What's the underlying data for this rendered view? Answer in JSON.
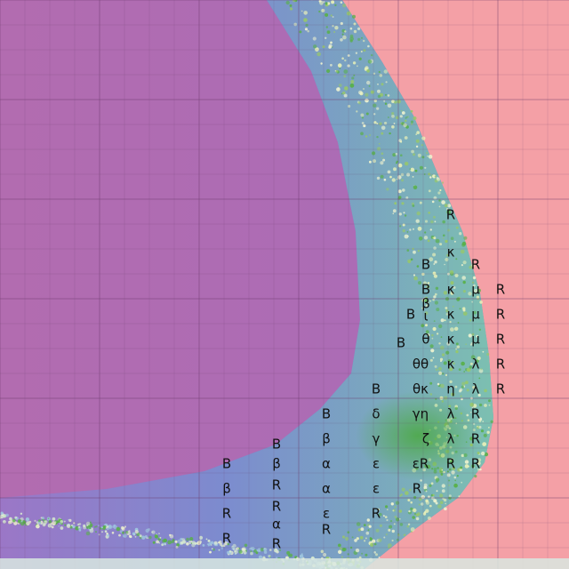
{
  "colors": {
    "left_region": "#b06ab0",
    "core_region": "#7078c8",
    "boundary_teal": "#78b8b8",
    "right_region": "#f4a0a6",
    "pattern_light": "#f0f4d0",
    "pattern_green": "#58b048",
    "grid_line": "#6a3a6a"
  },
  "labels": [
    {
      "id": "lbl-1",
      "text": "R"
    },
    {
      "id": "lbl-2",
      "text": "B"
    },
    {
      "id": "lbl-3",
      "text": "κ"
    },
    {
      "id": "lbl-4",
      "text": "R"
    },
    {
      "id": "lbl-5",
      "text": "B"
    },
    {
      "id": "lbl-6",
      "text": "κ"
    },
    {
      "id": "lbl-7",
      "text": "μ"
    },
    {
      "id": "lbl-8",
      "text": "R"
    },
    {
      "id": "lbl-9",
      "text": "β"
    },
    {
      "id": "lbl-10",
      "text": "B"
    },
    {
      "id": "lbl-11",
      "text": "ι"
    },
    {
      "id": "lbl-12",
      "text": "κ"
    },
    {
      "id": "lbl-13",
      "text": "μ"
    },
    {
      "id": "lbl-14",
      "text": "R"
    },
    {
      "id": "lbl-15",
      "text": "B"
    },
    {
      "id": "lbl-16",
      "text": "θ"
    },
    {
      "id": "lbl-17",
      "text": "κ"
    },
    {
      "id": "lbl-18",
      "text": "μ"
    },
    {
      "id": "lbl-19",
      "text": "R"
    },
    {
      "id": "lbl-20",
      "text": "θθ"
    },
    {
      "id": "lbl-21",
      "text": "κ"
    },
    {
      "id": "lbl-22",
      "text": "λ"
    },
    {
      "id": "lbl-23",
      "text": "R"
    },
    {
      "id": "lbl-24",
      "text": "B"
    },
    {
      "id": "lbl-25",
      "text": "θκ"
    },
    {
      "id": "lbl-26",
      "text": "η"
    },
    {
      "id": "lbl-27",
      "text": "λ"
    },
    {
      "id": "lbl-28",
      "text": "R"
    },
    {
      "id": "lbl-29",
      "text": "B"
    },
    {
      "id": "lbl-30",
      "text": "δ"
    },
    {
      "id": "lbl-31",
      "text": "γη"
    },
    {
      "id": "lbl-32",
      "text": "λ"
    },
    {
      "id": "lbl-33",
      "text": "R"
    },
    {
      "id": "lbl-34",
      "text": "B"
    },
    {
      "id": "lbl-35",
      "text": "β"
    },
    {
      "id": "lbl-36",
      "text": "γ"
    },
    {
      "id": "lbl-37",
      "text": "ζ"
    },
    {
      "id": "lbl-38",
      "text": "λ"
    },
    {
      "id": "lbl-39",
      "text": "R"
    },
    {
      "id": "lbl-40",
      "text": "B"
    },
    {
      "id": "lbl-41",
      "text": "β"
    },
    {
      "id": "lbl-42",
      "text": "α"
    },
    {
      "id": "lbl-43",
      "text": "ε"
    },
    {
      "id": "lbl-44",
      "text": "εR"
    },
    {
      "id": "lbl-45",
      "text": "R"
    },
    {
      "id": "lbl-46",
      "text": "R"
    },
    {
      "id": "lbl-47",
      "text": "β"
    },
    {
      "id": "lbl-48",
      "text": "R"
    },
    {
      "id": "lbl-49",
      "text": "α"
    },
    {
      "id": "lbl-50",
      "text": "ε"
    },
    {
      "id": "lbl-51",
      "text": "R"
    },
    {
      "id": "lbl-52",
      "text": "R"
    },
    {
      "id": "lbl-53",
      "text": "R"
    },
    {
      "id": "lbl-54",
      "text": "ε"
    },
    {
      "id": "lbl-55",
      "text": "R"
    },
    {
      "id": "lbl-56",
      "text": "α"
    },
    {
      "id": "lbl-57",
      "text": "R"
    },
    {
      "id": "lbl-58",
      "text": "R"
    },
    {
      "id": "lbl-59",
      "text": "R"
    }
  ]
}
